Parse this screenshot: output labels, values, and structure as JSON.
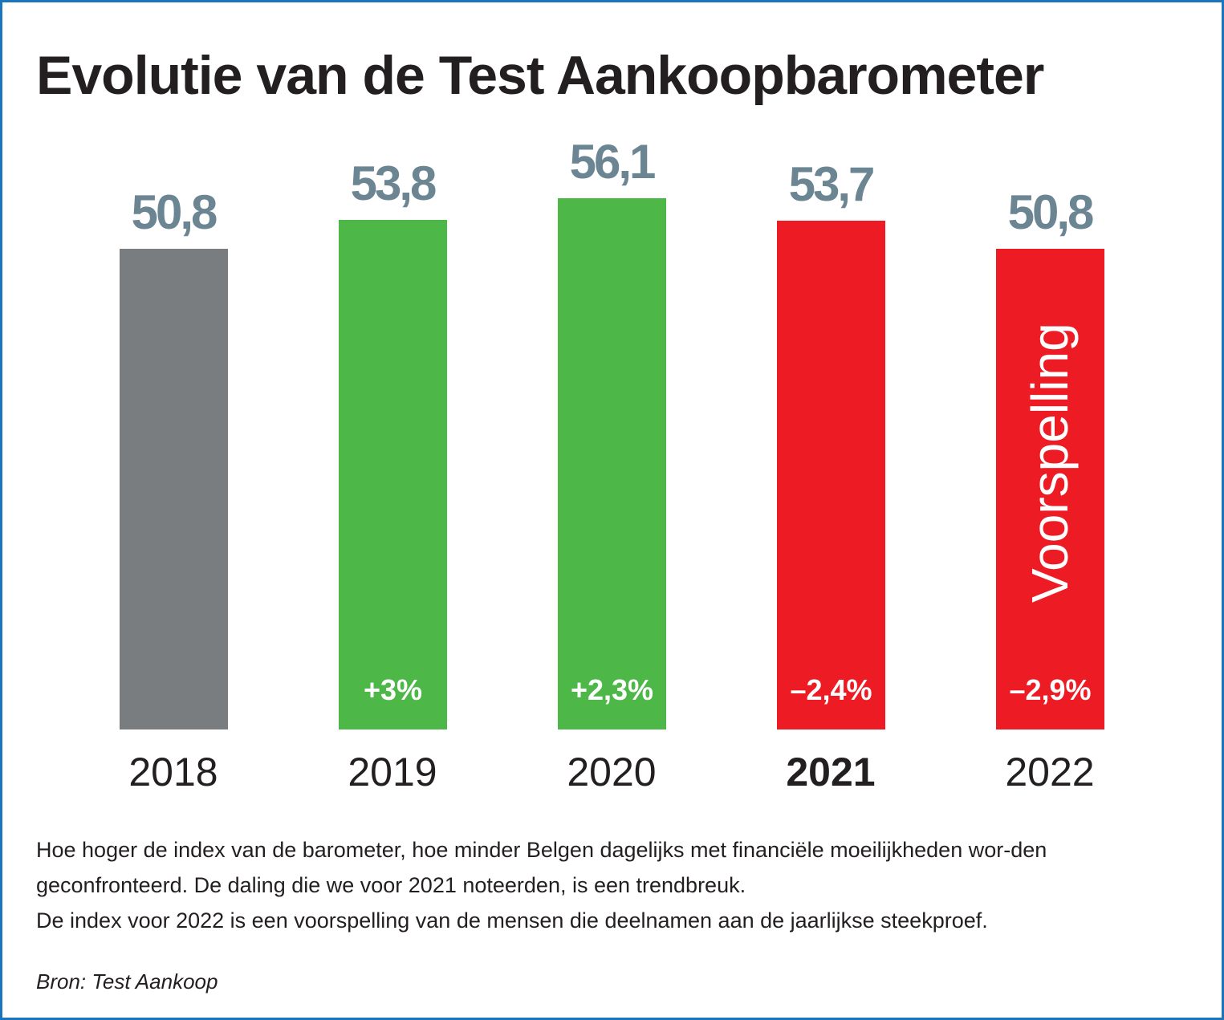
{
  "chart_data": {
    "type": "bar",
    "title": "Evolutie van de Test Aankoopbarometer",
    "categories": [
      "2018",
      "2019",
      "2020",
      "2021",
      "2022"
    ],
    "values": [
      50.8,
      53.8,
      56.1,
      53.7,
      50.8
    ],
    "value_labels": [
      "50,8",
      "53,8",
      "56,1",
      "53,7",
      "50,8"
    ],
    "change_labels": [
      "",
      "+3%",
      "+2,3%",
      "–2,4%",
      "–2,9%"
    ],
    "bar_colors": [
      "#797d80",
      "#4db848",
      "#4db848",
      "#ed1c24",
      "#ed1c24"
    ],
    "highlight_category": "2021",
    "forecast_label": "Voorspelling",
    "forecast_category": "2022",
    "xlabel": "",
    "ylabel": "",
    "ylim": [
      0,
      60
    ],
    "grid": false
  },
  "description": [
    "Hoe hoger de index van de barometer, hoe minder Belgen dagelijks met financiële moeilijkheden wor-den geconfronteerd. De daling die we voor 2021 noteerden, is een trendbreuk.",
    "De index voor 2022 is een voorspelling van de mensen die deelnamen aan de jaarlijkse steekproef."
  ],
  "source": "Bron: Test Aankoop"
}
